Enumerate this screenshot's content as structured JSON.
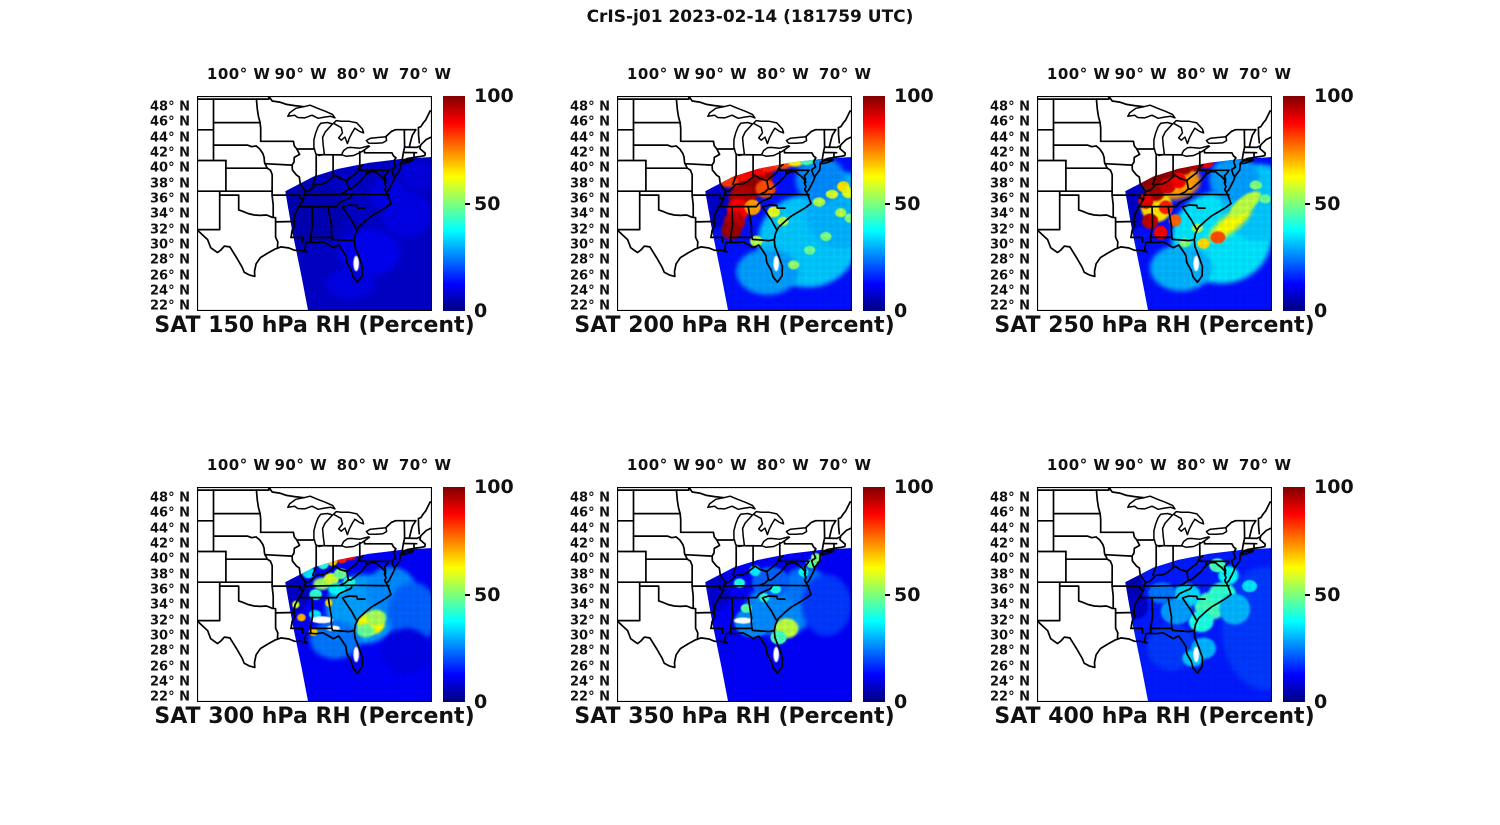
{
  "header": {
    "title": "CrIS-j01 2023-02-14 (181759 UTC)"
  },
  "chart_data": {
    "type": "heatmap",
    "figure_title": "CrIS-j01 2023-02-14 (181759 UTC)",
    "colormap": "jet",
    "colorbar": {
      "min": 0,
      "max": 100,
      "tick_labels": [
        "100",
        "50",
        "0"
      ],
      "tick_values": [
        100,
        50,
        0
      ],
      "gradient_stops": [
        {
          "pos": 0,
          "color": "#00007f"
        },
        {
          "pos": 12.5,
          "color": "#0000ff"
        },
        {
          "pos": 37.5,
          "color": "#00ffff"
        },
        {
          "pos": 50,
          "color": "#7dff7a"
        },
        {
          "pos": 62.5,
          "color": "#ffff00"
        },
        {
          "pos": 87.5,
          "color": "#ff0000"
        },
        {
          "pos": 100,
          "color": "#7f0000"
        }
      ]
    },
    "axes": {
      "lon_tick_labels": [
        "100° W",
        "90° W",
        "80° W",
        "70° W"
      ],
      "lon_tick_values": [
        -100,
        -90,
        -80,
        -70
      ],
      "lat_tick_labels": [
        "48° N",
        "46° N",
        "44° N",
        "42° N",
        "40° N",
        "38° N",
        "36° N",
        "34° N",
        "32° N",
        "30° N",
        "28° N",
        "26° N",
        "24° N",
        "22° N"
      ],
      "lat_tick_values": [
        48,
        46,
        44,
        42,
        40,
        38,
        36,
        34,
        32,
        30,
        28,
        26,
        24,
        22
      ],
      "lon_range": [
        -106.7,
        -68.9
      ],
      "lat_range": [
        21.4,
        49.4
      ],
      "grid": false
    },
    "swath_polygon": [
      [
        -92.5,
        37.0
      ],
      [
        -88,
        38.9
      ],
      [
        -84,
        39.9
      ],
      [
        -79,
        40.7
      ],
      [
        -74,
        41.2
      ],
      [
        -66,
        41.6
      ],
      [
        -66,
        20.5
      ],
      [
        -88.6,
        20.5
      ],
      [
        -89.9,
        26.0
      ],
      [
        -91.3,
        31.5
      ]
    ],
    "features_order": "lon,lat,rh_percent,rx_deg,ry_deg,rot_deg",
    "gaps_order": "lon,lat,rx_deg,ry_deg",
    "panels": [
      {
        "id": "sat-150",
        "title": "SAT 150 hPa RH (Percent)",
        "level_hPa": 150,
        "base_rh": 7,
        "features": [
          [
            -88,
            34,
            5,
            5,
            4
          ],
          [
            -79,
            29,
            11,
            5,
            3
          ],
          [
            -73,
            34,
            10,
            4,
            3
          ],
          [
            -82,
            25,
            10,
            4,
            2
          ],
          [
            -71,
            39,
            9,
            3,
            2
          ],
          [
            -76,
            36.5,
            10,
            3,
            2
          ]
        ],
        "gaps": [
          [
            -81.1,
            27.6,
            0.45,
            1.0
          ]
        ]
      },
      {
        "id": "sat-200",
        "title": "SAT 200 hPa RH (Percent)",
        "level_hPa": 200,
        "base_rh": 14,
        "features": [
          [
            -76,
            30.5,
            32,
            8,
            6
          ],
          [
            -70.5,
            34.5,
            30,
            6,
            5
          ],
          [
            -82.5,
            26.5,
            28,
            5,
            3
          ],
          [
            -74,
            38.5,
            26,
            4,
            3
          ],
          [
            -91.5,
            35,
            7,
            3.5,
            3
          ],
          [
            -89.5,
            38.5,
            9,
            2.5,
            2
          ],
          [
            -84.2,
            38.9,
            96,
            2.6,
            1.7
          ],
          [
            -85.6,
            37.6,
            98,
            2.4,
            1.6
          ],
          [
            -86.5,
            36.2,
            95,
            2.2,
            1.5
          ],
          [
            -87.2,
            34.6,
            88,
            1.8,
            1.4
          ],
          [
            -87.8,
            33,
            94,
            1.7,
            1.3
          ],
          [
            -88.3,
            31.9,
            97,
            1.6,
            1.2
          ],
          [
            -82.8,
            37.3,
            80,
            1.6,
            1.2
          ],
          [
            -84.9,
            34.9,
            72,
            1.3,
            1
          ],
          [
            -88.7,
            38.4,
            82,
            1.7,
            0.9
          ],
          [
            -86.6,
            39.3,
            86,
            1.9,
            1
          ],
          [
            -84.4,
            39.9,
            88,
            2,
            1
          ],
          [
            -82.2,
            40.4,
            84,
            1.8,
            0.9
          ],
          [
            -80.1,
            40.7,
            80,
            1.6,
            0.85
          ],
          [
            -78,
            41,
            62,
            1.4,
            0.8
          ],
          [
            -76.2,
            41.2,
            45,
            1.3,
            0.8
          ],
          [
            -81.5,
            34.3,
            60,
            1,
            0.7
          ],
          [
            -80,
            33.1,
            55,
            0.9,
            0.6
          ],
          [
            -84.3,
            30.5,
            55,
            1,
            0.7
          ],
          [
            -78.3,
            27.4,
            52,
            0.9,
            0.6
          ],
          [
            -74.2,
            35.6,
            55,
            1,
            0.6
          ],
          [
            -72.1,
            36.6,
            58,
            1,
            0.6
          ],
          [
            -70.7,
            34.2,
            55,
            0.9,
            0.6
          ],
          [
            -73.1,
            31.1,
            50,
            0.9,
            0.6
          ],
          [
            -75.7,
            29.3,
            48,
            0.9,
            0.6
          ],
          [
            -70.3,
            37.6,
            65,
            1,
            0.7
          ],
          [
            -69.5,
            36.8,
            60,
            1,
            0.7
          ],
          [
            -69.2,
            33.5,
            50,
            0.9,
            0.6
          ]
        ],
        "gaps": [
          [
            -81.1,
            27.6,
            0.45,
            1.0
          ]
        ]
      },
      {
        "id": "sat-250",
        "title": "SAT 250 hPa RH (Percent)",
        "level_hPa": 250,
        "base_rh": 14,
        "features": [
          [
            -77,
            31,
            35,
            8,
            6
          ],
          [
            -71,
            35.5,
            32,
            6,
            5
          ],
          [
            -83.5,
            27,
            30,
            5,
            3
          ],
          [
            -75,
            38.5,
            28,
            4,
            3
          ],
          [
            -91.5,
            35,
            7,
            3.5,
            3
          ],
          [
            -85,
            38.5,
            72,
            4.5,
            2.6
          ],
          [
            -87.5,
            35,
            65,
            2.5,
            2
          ],
          [
            -88.6,
            38.3,
            98,
            1.4,
            1.2
          ],
          [
            -86.9,
            39.2,
            99,
            1.6,
            1.3
          ],
          [
            -85,
            39.8,
            98,
            1.5,
            1.2
          ],
          [
            -83.1,
            40.3,
            97,
            1.5,
            1.2
          ],
          [
            -81.2,
            40.7,
            96,
            1.4,
            1.1
          ],
          [
            -79.4,
            41,
            90,
            1.2,
            1
          ],
          [
            -87.6,
            36.9,
            97,
            1.5,
            1.2
          ],
          [
            -85.7,
            37.7,
            92,
            1.3,
            1
          ],
          [
            -83.9,
            38.4,
            88,
            1.2,
            1
          ],
          [
            -89.2,
            35.7,
            90,
            1.2,
            1
          ],
          [
            -88.5,
            33.1,
            94,
            1.3,
            1
          ],
          [
            -86.8,
            31.6,
            88,
            1.1,
            0.9
          ],
          [
            -84.5,
            33.2,
            78,
            1,
            0.8
          ],
          [
            -86,
            34.9,
            85,
            1.1,
            0.9
          ],
          [
            -75.6,
            32.8,
            62,
            4.2,
            1.1,
            -38
          ],
          [
            -73.2,
            35.3,
            56,
            3,
            1,
            -38
          ],
          [
            -77.6,
            31,
            80,
            1.2,
            0.8
          ],
          [
            -79.9,
            30.2,
            66,
            1,
            0.7
          ],
          [
            -80.9,
            32.2,
            55,
            0.9,
            0.6
          ],
          [
            -82.9,
            30.3,
            50,
            0.9,
            0.6
          ],
          [
            -71.5,
            37.8,
            50,
            1,
            0.6
          ],
          [
            -70,
            36,
            48,
            0.9,
            0.6
          ]
        ],
        "gaps": [
          [
            -81.1,
            27.6,
            0.45,
            1.0
          ]
        ]
      },
      {
        "id": "sat-300",
        "title": "SAT 300 hPa RH (Percent)",
        "level_hPa": 300,
        "base_rh": 12,
        "features": [
          [
            -80,
            33.5,
            28,
            6,
            4.5
          ],
          [
            -75.5,
            36,
            26,
            4,
            3
          ],
          [
            -84.5,
            29.5,
            24,
            4,
            2.5
          ],
          [
            -72,
            33,
            22,
            4,
            4
          ],
          [
            -91.5,
            35.5,
            7,
            3,
            2.5
          ],
          [
            -73,
            28,
            10,
            4,
            3
          ],
          [
            -86.6,
            36.8,
            52,
            1.4,
            0.8
          ],
          [
            -85.1,
            37.4,
            58,
            1.2,
            0.8
          ],
          [
            -83.6,
            38.1,
            48,
            1.1,
            0.7
          ],
          [
            -87.6,
            35.4,
            42,
            1,
            0.7
          ],
          [
            -84.2,
            36.1,
            38,
            1.4,
            0.8
          ],
          [
            -82.2,
            37,
            40,
            1,
            0.7
          ],
          [
            -83.4,
            40.3,
            85,
            1,
            0.85
          ],
          [
            -82,
            40.7,
            87,
            1,
            0.85
          ],
          [
            -84.9,
            39.8,
            68,
            0.8,
            0.7
          ],
          [
            -80.6,
            41,
            58,
            0.8,
            0.6
          ],
          [
            -86.4,
            39.4,
            42,
            0.9,
            0.7
          ],
          [
            -88.8,
            38.3,
            35,
            1,
            0.8
          ],
          [
            -78.7,
            31.6,
            62,
            2.2,
            1.4
          ],
          [
            -77.9,
            32.4,
            54,
            1.6,
            1
          ],
          [
            -79.6,
            30.7,
            48,
            1.4,
            0.9
          ],
          [
            -89.9,
            32.4,
            70,
            0.7,
            0.5
          ],
          [
            -88,
            30.5,
            68,
            0.7,
            0.5
          ],
          [
            -85.5,
            34.3,
            66,
            0.6,
            0.5
          ],
          [
            -90.8,
            34.1,
            58,
            0.6,
            0.5
          ],
          [
            -87.7,
            32.8,
            35,
            1,
            0.6
          ]
        ],
        "gaps": [
          [
            -81.1,
            27.6,
            0.45,
            1.0
          ],
          [
            -86.6,
            32.1,
            1.8,
            0.45
          ],
          [
            -84.8,
            31.0,
            1.1,
            0.35
          ]
        ]
      },
      {
        "id": "sat-350",
        "title": "SAT 350 hPa RH (Percent)",
        "level_hPa": 350,
        "base_rh": 12,
        "features": [
          [
            -80.5,
            33.5,
            26,
            5.5,
            3.5
          ],
          [
            -84.8,
            31.8,
            26,
            3,
            2
          ],
          [
            -76.5,
            36.5,
            24,
            3.5,
            2.5
          ],
          [
            -82,
            37,
            22,
            3,
            2
          ],
          [
            -73,
            34,
            18,
            4,
            4
          ],
          [
            -91.5,
            35.5,
            8,
            3,
            2.5
          ],
          [
            -79.4,
            31,
            56,
            1.9,
            1.3
          ],
          [
            -80.7,
            29.8,
            44,
            1.3,
            0.9
          ],
          [
            -75.4,
            39.4,
            46,
            0.9,
            0.6
          ],
          [
            -74.7,
            40.2,
            50,
            0.8,
            0.6
          ],
          [
            -76.7,
            38.3,
            38,
            0.8,
            0.6
          ],
          [
            -84.5,
            38.5,
            36,
            0.9,
            0.7
          ],
          [
            -87,
            36.9,
            40,
            0.9,
            0.6
          ],
          [
            -83,
            35,
            42,
            0.8,
            0.6
          ],
          [
            -85.9,
            33.6,
            46,
            0.9,
            0.6
          ],
          [
            -81.2,
            36.1,
            40,
            0.9,
            0.6
          ]
        ],
        "gaps": [
          [
            -81.1,
            27.6,
            0.45,
            1.0
          ],
          [
            -86.4,
            32.0,
            1.5,
            0.4
          ]
        ]
      },
      {
        "id": "sat-400",
        "title": "SAT 400 hPa RH (Percent)",
        "level_hPa": 400,
        "base_rh": 15,
        "features": [
          [
            -70,
            31,
            18,
            7,
            8
          ],
          [
            -85,
            28.5,
            18,
            4,
            3
          ],
          [
            -92.3,
            36.4,
            5,
            2.6,
            2.3
          ],
          [
            -90.8,
            33.9,
            7,
            2,
            1.7
          ],
          [
            -90.7,
            40.3,
            6,
            2.4,
            2
          ],
          [
            -78.8,
            33.9,
            44,
            2.6,
            1.8
          ],
          [
            -76.9,
            35.4,
            42,
            2.2,
            1.6
          ],
          [
            -80.3,
            31.9,
            40,
            2,
            1.4
          ],
          [
            -82.6,
            35.3,
            34,
            2.2,
            1.5
          ],
          [
            -75.9,
            37.9,
            38,
            1.6,
            1.2
          ],
          [
            -77.7,
            39.2,
            44,
            1.3,
            0.9
          ],
          [
            -79.9,
            28.4,
            30,
            2,
            1.4
          ],
          [
            -81.6,
            27.1,
            32,
            1.7,
            1.1
          ],
          [
            -74.9,
            33.5,
            30,
            2.5,
            2
          ],
          [
            -84.3,
            33.2,
            28,
            2.5,
            1.7
          ],
          [
            -86.6,
            35.6,
            24,
            2.2,
            1.4
          ],
          [
            -80.9,
            42,
            40,
            0.9,
            0.6
          ],
          [
            -72.5,
            36.5,
            35,
            1.2,
            0.8
          ]
        ],
        "gaps": [
          [
            -81.1,
            27.6,
            0.45,
            1.0
          ]
        ]
      }
    ]
  }
}
